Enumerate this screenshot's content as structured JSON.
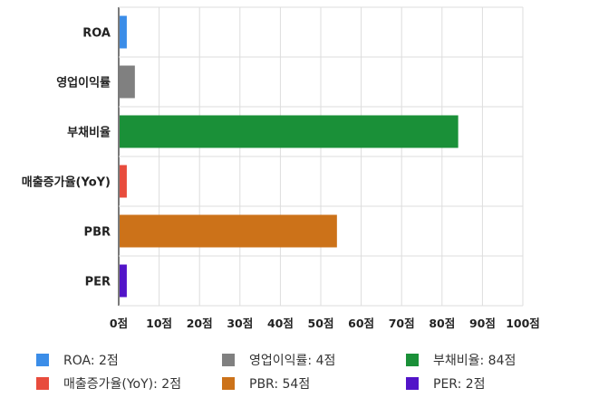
{
  "chart_data": {
    "type": "bar",
    "orientation": "horizontal",
    "categories": [
      "ROA",
      "영업이익률",
      "부채비율",
      "매출증가율(YoY)",
      "PBR",
      "PER"
    ],
    "values": [
      2,
      4,
      84,
      2,
      54,
      2
    ],
    "colors": [
      "#3b8de8",
      "#808080",
      "#1a9038",
      "#e84c3d",
      "#cc7219",
      "#5214c8"
    ],
    "xlim": [
      0,
      100
    ],
    "tick_values": [
      0,
      10,
      20,
      30,
      40,
      50,
      60,
      70,
      80,
      90,
      100
    ],
    "tick_labels": [
      "0점",
      "10점",
      "20점",
      "30점",
      "40점",
      "50점",
      "60점",
      "70점",
      "80점",
      "90점",
      "100점"
    ],
    "grid": true,
    "legend_position": "bottom",
    "legend": [
      {
        "label": "ROA: 2점",
        "color": "#3b8de8"
      },
      {
        "label": "영업이익률: 4점",
        "color": "#808080"
      },
      {
        "label": "부채비율: 84점",
        "color": "#1a9038"
      },
      {
        "label": "매출증가율(YoY): 2점",
        "color": "#e84c3d"
      },
      {
        "label": "PBR: 54점",
        "color": "#cc7219"
      },
      {
        "label": "PER: 2점",
        "color": "#5214c8"
      }
    ]
  }
}
